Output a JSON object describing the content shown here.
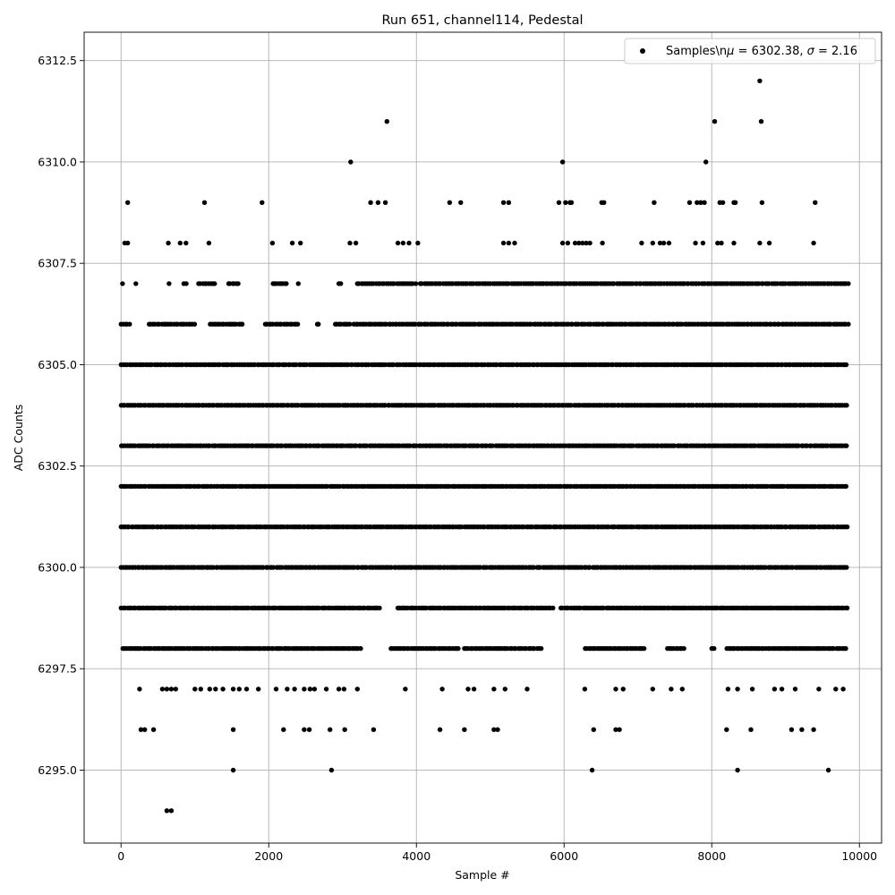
{
  "chart_data": {
    "type": "scatter",
    "title": "Run 651, channel114, Pedestal",
    "xlabel": "Sample #",
    "ylabel": "ADC Counts",
    "xlim": [
      -500,
      10300
    ],
    "ylim": [
      6293.2,
      6313.2
    ],
    "x_ticks": [
      0,
      2000,
      4000,
      6000,
      8000,
      10000
    ],
    "y_ticks": [
      6295.0,
      6297.5,
      6300.0,
      6302.5,
      6305.0,
      6307.5,
      6310.0,
      6312.5
    ],
    "x_tick_labels": [
      "0",
      "2000",
      "4000",
      "6000",
      "8000",
      "10000"
    ],
    "y_tick_labels": [
      "6295.0",
      "6297.5",
      "6300.0",
      "6302.5",
      "6305.0",
      "6307.5",
      "6310.0",
      "6312.5"
    ],
    "grid": true,
    "legend_position": "top-right",
    "marker_color": "#000000",
    "series": [
      {
        "name": "Samples\\nμ = 6302.38, σ = 2.16",
        "name_main": "Samples\\n",
        "mu_symbol": "μ",
        "mu_text": " = 6302.38, ",
        "sigma_symbol": "σ",
        "sigma_text": " = 2.16",
        "bands": [
          {
            "y": 6301,
            "ranges": [
              [
                0,
                9850
              ]
            ]
          },
          {
            "y": 6302,
            "ranges": [
              [
                0,
                9850
              ]
            ]
          },
          {
            "y": 6303,
            "ranges": [
              [
                0,
                9850
              ]
            ]
          },
          {
            "y": 6304,
            "ranges": [
              [
                0,
                9850
              ]
            ]
          },
          {
            "y": 6300,
            "ranges": [
              [
                0,
                9850
              ]
            ]
          },
          {
            "y": 6305,
            "ranges": [
              [
                0,
                9850
              ]
            ]
          },
          {
            "y": 6299,
            "ranges": [
              [
                0,
                3500
              ],
              [
                3750,
                5850
              ],
              [
                5950,
                9850
              ]
            ]
          },
          {
            "y": 6298,
            "ranges": [
              [
                20,
                3250
              ],
              [
                3650,
                4600
              ],
              [
                4650,
                5700
              ],
              [
                6280,
                7100
              ],
              [
                7400,
                7650
              ],
              [
                8000,
                8050
              ],
              [
                8200,
                9850
              ]
            ]
          },
          {
            "y": 6306,
            "ranges": [
              [
                0,
                120
              ],
              [
                380,
                1000
              ],
              [
                1200,
                1650
              ],
              [
                1950,
                2400
              ],
              [
                2650,
                2700
              ],
              [
                2900,
                3100
              ],
              [
                3150,
                9850
              ]
            ]
          },
          {
            "y": 6307,
            "ranges": [
              [
                20,
                30
              ],
              [
                200,
                210
              ],
              [
                650,
                660
              ],
              [
                850,
                890
              ],
              [
                1050,
                1300
              ],
              [
                1450,
                1600
              ],
              [
                2050,
                2250
              ],
              [
                2400,
                2410
              ],
              [
                2950,
                3000
              ],
              [
                3200,
                4000
              ],
              [
                4050,
                9850
              ]
            ]
          }
        ],
        "extra_points": [
          [
            620,
            6294
          ],
          [
            680,
            6294
          ],
          [
            1520,
            6295
          ],
          [
            2850,
            6295
          ],
          [
            6380,
            6295
          ],
          [
            8350,
            6295
          ],
          [
            9580,
            6295
          ],
          [
            270,
            6296
          ],
          [
            320,
            6296
          ],
          [
            440,
            6296
          ],
          [
            1520,
            6296
          ],
          [
            2200,
            6296
          ],
          [
            2480,
            6296
          ],
          [
            2550,
            6296
          ],
          [
            2830,
            6296
          ],
          [
            3030,
            6296
          ],
          [
            3420,
            6296
          ],
          [
            4320,
            6296
          ],
          [
            4650,
            6296
          ],
          [
            5050,
            6296
          ],
          [
            5100,
            6296
          ],
          [
            6400,
            6296
          ],
          [
            6700,
            6296
          ],
          [
            6750,
            6296
          ],
          [
            8200,
            6296
          ],
          [
            8530,
            6296
          ],
          [
            9080,
            6296
          ],
          [
            9220,
            6296
          ],
          [
            9380,
            6296
          ],
          [
            250,
            6297
          ],
          [
            560,
            6297
          ],
          [
            620,
            6297
          ],
          [
            680,
            6297
          ],
          [
            740,
            6297
          ],
          [
            1000,
            6297
          ],
          [
            1080,
            6297
          ],
          [
            1200,
            6297
          ],
          [
            1280,
            6297
          ],
          [
            1380,
            6297
          ],
          [
            1520,
            6297
          ],
          [
            1600,
            6297
          ],
          [
            1700,
            6297
          ],
          [
            1860,
            6297
          ],
          [
            2100,
            6297
          ],
          [
            2250,
            6297
          ],
          [
            2350,
            6297
          ],
          [
            2480,
            6297
          ],
          [
            2560,
            6297
          ],
          [
            2620,
            6297
          ],
          [
            2780,
            6297
          ],
          [
            2950,
            6297
          ],
          [
            3020,
            6297
          ],
          [
            3200,
            6297
          ],
          [
            3850,
            6297
          ],
          [
            4350,
            6297
          ],
          [
            4700,
            6297
          ],
          [
            4780,
            6297
          ],
          [
            5050,
            6297
          ],
          [
            5200,
            6297
          ],
          [
            5500,
            6297
          ],
          [
            6280,
            6297
          ],
          [
            6700,
            6297
          ],
          [
            6800,
            6297
          ],
          [
            7200,
            6297
          ],
          [
            7450,
            6297
          ],
          [
            7600,
            6297
          ],
          [
            8220,
            6297
          ],
          [
            8350,
            6297
          ],
          [
            8550,
            6297
          ],
          [
            8850,
            6297
          ],
          [
            8950,
            6297
          ],
          [
            9130,
            6297
          ],
          [
            9450,
            6297
          ],
          [
            9680,
            6297
          ],
          [
            9780,
            6297
          ],
          [
            50,
            6308
          ],
          [
            90,
            6308
          ],
          [
            640,
            6308
          ],
          [
            800,
            6308
          ],
          [
            880,
            6308
          ],
          [
            1190,
            6308
          ],
          [
            2050,
            6308
          ],
          [
            2320,
            6308
          ],
          [
            2430,
            6308
          ],
          [
            3100,
            6308
          ],
          [
            3180,
            6308
          ],
          [
            3750,
            6308
          ],
          [
            3820,
            6308
          ],
          [
            3900,
            6308
          ],
          [
            4020,
            6308
          ],
          [
            5180,
            6308
          ],
          [
            5250,
            6308
          ],
          [
            5330,
            6308
          ],
          [
            5980,
            6308
          ],
          [
            6050,
            6308
          ],
          [
            6150,
            6308
          ],
          [
            6200,
            6308
          ],
          [
            6250,
            6308
          ],
          [
            6300,
            6308
          ],
          [
            6350,
            6308
          ],
          [
            6520,
            6308
          ],
          [
            7050,
            6308
          ],
          [
            7200,
            6308
          ],
          [
            7300,
            6308
          ],
          [
            7350,
            6308
          ],
          [
            7420,
            6308
          ],
          [
            7780,
            6308
          ],
          [
            7880,
            6308
          ],
          [
            8080,
            6308
          ],
          [
            8130,
            6308
          ],
          [
            8300,
            6308
          ],
          [
            8650,
            6308
          ],
          [
            8780,
            6308
          ],
          [
            9380,
            6308
          ],
          [
            90,
            6309
          ],
          [
            1130,
            6309
          ],
          [
            1910,
            6309
          ],
          [
            3380,
            6309
          ],
          [
            3480,
            6309
          ],
          [
            3580,
            6309
          ],
          [
            4450,
            6309
          ],
          [
            4600,
            6309
          ],
          [
            5180,
            6309
          ],
          [
            5250,
            6309
          ],
          [
            5930,
            6309
          ],
          [
            6020,
            6309
          ],
          [
            6080,
            6309
          ],
          [
            6100,
            6309
          ],
          [
            6510,
            6309
          ],
          [
            6540,
            6309
          ],
          [
            7220,
            6309
          ],
          [
            7700,
            6309
          ],
          [
            7800,
            6309
          ],
          [
            7850,
            6309
          ],
          [
            7900,
            6309
          ],
          [
            8110,
            6309
          ],
          [
            8150,
            6309
          ],
          [
            8300,
            6309
          ],
          [
            8320,
            6309
          ],
          [
            8680,
            6309
          ],
          [
            9400,
            6309
          ],
          [
            3110,
            6310
          ],
          [
            5980,
            6310
          ],
          [
            7920,
            6310
          ],
          [
            3600,
            6311
          ],
          [
            8040,
            6311
          ],
          [
            8670,
            6311
          ],
          [
            8650,
            6312
          ]
        ]
      }
    ]
  }
}
